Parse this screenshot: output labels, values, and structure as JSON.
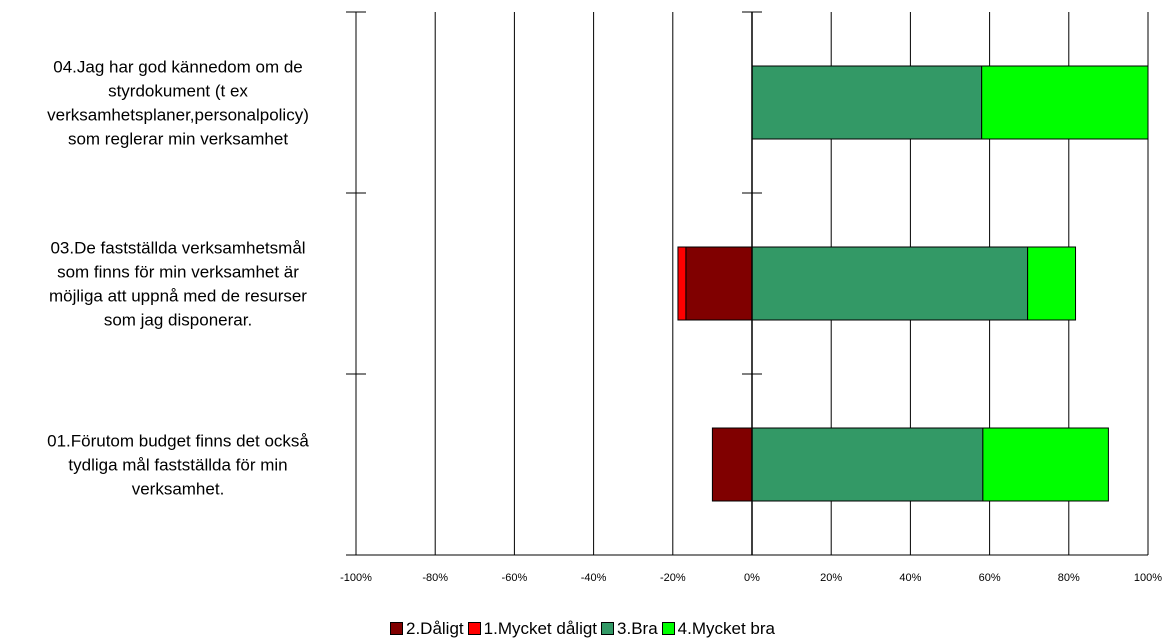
{
  "chart_data": {
    "type": "bar",
    "orientation": "horizontal",
    "stacked": "diverging",
    "categories": [
      "04.Jag har god kännedom om de styrdokument (t ex verksamhetsplaner,personalpolicy) som reglerar min verksamhet",
      "03.De fastställda verksamhetsmål som finns för min verksamhet är möjliga att uppnå med de resurser som jag disponerar.",
      "01.Förutom budget finns det också tydliga mål fastställda för min verksamhet."
    ],
    "category_lines": [
      [
        "04.Jag har god kännedom om de",
        "styrdokument (t ex",
        "verksamhetsplaner,personalpolicy)",
        "som reglerar min verksamhet"
      ],
      [
        "03.De fastställda verksamhetsmål",
        "som finns för min verksamhet är",
        "möjliga att uppnå med de resurser",
        "som jag disponerar."
      ],
      [
        "01.Förutom budget finns det också",
        "tydliga mål fastställda för min",
        "verksamhet."
      ]
    ],
    "series": [
      {
        "name": "2.Dåligt",
        "color": "#800000",
        "side": "negative",
        "values": [
          0,
          -16.7,
          -10
        ]
      },
      {
        "name": "1.Mycket dåligt",
        "color": "#ff0000",
        "side": "negative",
        "values": [
          0,
          -2,
          0
        ]
      },
      {
        "name": "3.Bra",
        "color": "#339966",
        "side": "positive",
        "values": [
          58,
          69.6,
          58.3
        ]
      },
      {
        "name": "4.Mycket bra",
        "color": "#00ff00",
        "side": "positive",
        "values": [
          42,
          12.1,
          31.7
        ]
      }
    ],
    "xlim": [
      -100,
      100
    ],
    "xticks": [
      "-100%",
      "-80%",
      "-60%",
      "-40%",
      "-20%",
      "0%",
      "20%",
      "40%",
      "60%",
      "80%",
      "100%"
    ],
    "xlabel": "",
    "ylabel": "",
    "grid": true,
    "legend": "bottom"
  }
}
